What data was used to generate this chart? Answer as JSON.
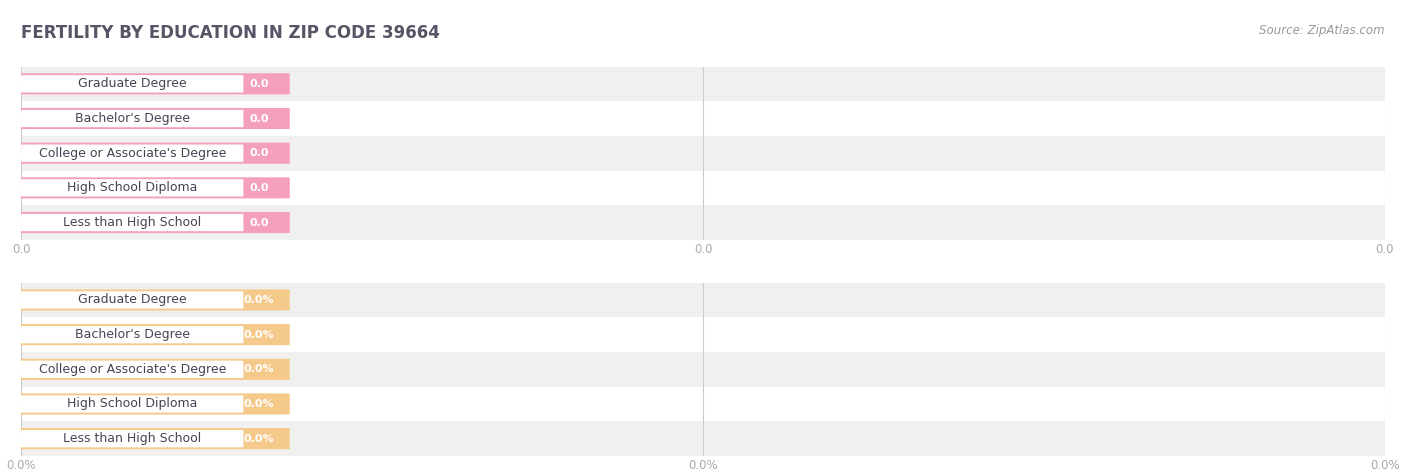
{
  "title": "FERTILITY BY EDUCATION IN ZIP CODE 39664",
  "source": "Source: ZipAtlas.com",
  "categories": [
    "Less than High School",
    "High School Diploma",
    "College or Associate's Degree",
    "Bachelor's Degree",
    "Graduate Degree"
  ],
  "values_top": [
    0.0,
    0.0,
    0.0,
    0.0,
    0.0
  ],
  "values_bottom": [
    0.0,
    0.0,
    0.0,
    0.0,
    0.0
  ],
  "bar_color_top": "#f4a0bb",
  "bar_color_bottom": "#f5c98a",
  "bg_color": "#ffffff",
  "row_bg_even": "#f0f0f0",
  "row_bg_odd": "#ffffff",
  "title_color": "#555566",
  "source_color": "#999999",
  "tick_color": "#aaaaaa",
  "grid_color": "#cccccc",
  "label_text_color": "#444455",
  "value_text_color_top": "#ffffff",
  "value_text_color_bottom": "#ffffff",
  "label_fontsize": 9,
  "value_fontsize": 8,
  "title_fontsize": 12,
  "source_fontsize": 8.5
}
